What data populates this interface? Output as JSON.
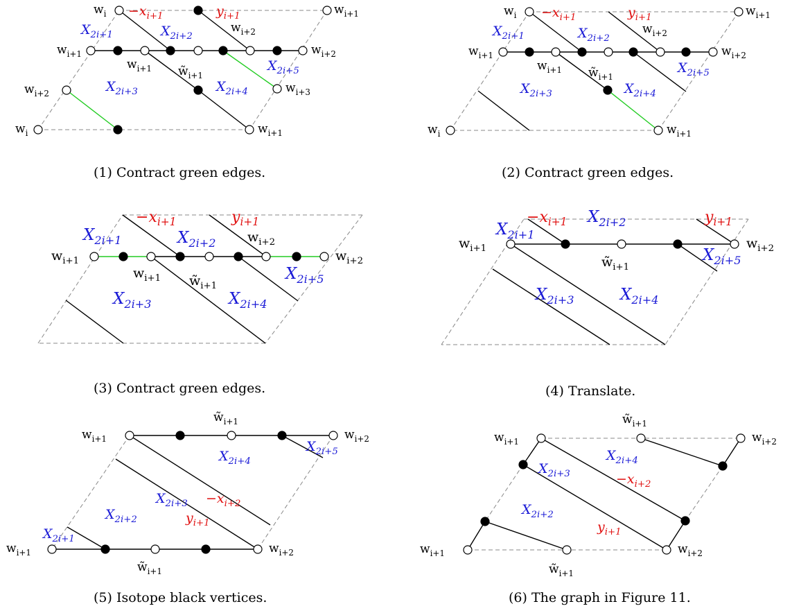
{
  "captions": {
    "p1": "(1) Contract green edges.",
    "p2": "(2) Contract green edges.",
    "p3": "(3) Contract green edges.",
    "p4": "(4) Translate.",
    "p5": "(5) Isotope black vertices.",
    "p6": "(6) The graph in Figure 11."
  },
  "sym": {
    "w": "w",
    "wt": "w̃",
    "X": "X",
    "x": "x",
    "y": "y",
    "minus": "−",
    "i": "i",
    "i1": "i+1",
    "i2": "i+2",
    "i3": "i+3",
    "X1": "2i+1",
    "X2": "2i+2",
    "X3": "2i+3",
    "X4": "2i+4",
    "X5": "2i+5"
  },
  "colors": {
    "blue_label": "#1a1ad6",
    "red_label": "#e01010",
    "green_edge": "#22cc22",
    "dashed_boundary": "#888888"
  }
}
